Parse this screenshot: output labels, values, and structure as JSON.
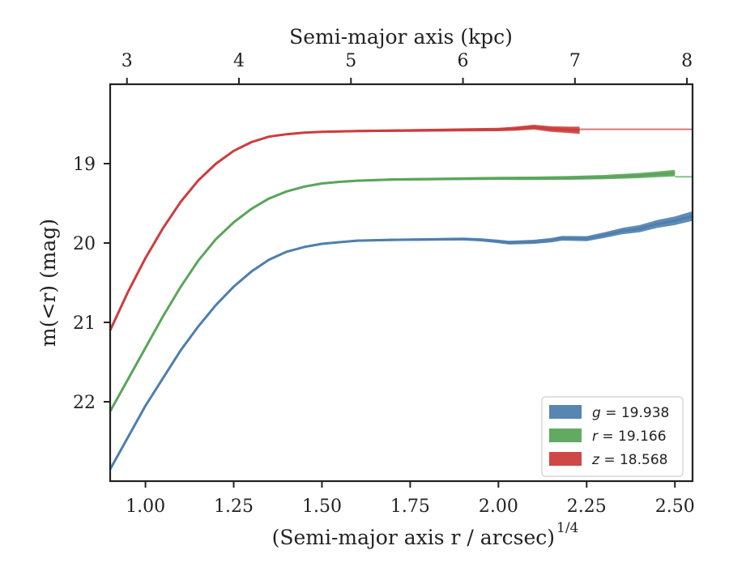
{
  "chart_data": {
    "type": "line",
    "xlabel": "(Semi-major axis r / arcsec)",
    "xlabel_sup": "1/4",
    "ylabel": "m(<r) (mag)",
    "top_xlabel": "Semi-major axis (kpc)",
    "xlim": [
      0.9,
      2.55
    ],
    "ylim": [
      23.0,
      18.0
    ],
    "y_inverted": true,
    "top_xlim": [
      2.85,
      8.05
    ],
    "x_ticks": [
      "1.00",
      "1.25",
      "1.50",
      "1.75",
      "2.00",
      "2.25",
      "2.50"
    ],
    "y_ticks": [
      "19",
      "20",
      "21",
      "22"
    ],
    "top_x_ticks": [
      "3",
      "4",
      "5",
      "6",
      "7",
      "8"
    ],
    "grid": false,
    "legend_position": "bottom-right",
    "series": [
      {
        "name": "g = 19.938",
        "legend": {
          "var": "g",
          "text": " = 19.938"
        },
        "color": "#4e7fad",
        "asymptote": 19.938,
        "x": [
          0.9,
          0.95,
          1.0,
          1.05,
          1.1,
          1.15,
          1.2,
          1.25,
          1.3,
          1.35,
          1.4,
          1.45,
          1.5,
          1.55,
          1.6,
          1.7,
          1.8,
          1.9,
          1.95,
          2.0,
          2.03,
          2.1,
          2.15,
          2.18,
          2.25,
          2.3,
          2.35,
          2.4,
          2.45,
          2.5,
          2.55
        ],
        "y": [
          22.85,
          22.45,
          22.05,
          21.7,
          21.35,
          21.05,
          20.78,
          20.55,
          20.36,
          20.21,
          20.11,
          20.05,
          20.01,
          19.99,
          19.97,
          19.96,
          19.955,
          19.95,
          19.96,
          19.98,
          19.995,
          19.985,
          19.965,
          19.94,
          19.945,
          19.9,
          19.85,
          19.82,
          19.76,
          19.72,
          19.66
        ],
        "band_half_width": [
          0.01,
          0.01,
          0.01,
          0.01,
          0.01,
          0.01,
          0.01,
          0.01,
          0.01,
          0.01,
          0.01,
          0.01,
          0.01,
          0.012,
          0.014,
          0.015,
          0.016,
          0.018,
          0.02,
          0.022,
          0.024,
          0.026,
          0.028,
          0.03,
          0.032,
          0.036,
          0.04,
          0.045,
          0.05,
          0.055,
          0.06
        ]
      },
      {
        "name": "r = 19.166",
        "legend": {
          "var": "r",
          "text": " = 19.166"
        },
        "color": "#5aa55a",
        "asymptote": 19.166,
        "x": [
          0.9,
          0.95,
          1.0,
          1.05,
          1.1,
          1.15,
          1.2,
          1.25,
          1.3,
          1.35,
          1.4,
          1.45,
          1.5,
          1.55,
          1.6,
          1.7,
          1.8,
          1.9,
          2.0,
          2.1,
          2.2,
          2.3,
          2.35,
          2.4,
          2.45,
          2.5
        ],
        "y": [
          22.12,
          21.72,
          21.32,
          20.92,
          20.55,
          20.22,
          19.95,
          19.74,
          19.57,
          19.44,
          19.35,
          19.29,
          19.25,
          19.23,
          19.215,
          19.2,
          19.195,
          19.19,
          19.185,
          19.185,
          19.18,
          19.17,
          19.16,
          19.15,
          19.135,
          19.12
        ],
        "band_half_width": [
          0.01,
          0.01,
          0.01,
          0.01,
          0.01,
          0.01,
          0.01,
          0.01,
          0.01,
          0.01,
          0.01,
          0.01,
          0.01,
          0.012,
          0.014,
          0.015,
          0.016,
          0.018,
          0.02,
          0.022,
          0.024,
          0.027,
          0.03,
          0.033,
          0.036,
          0.04
        ]
      },
      {
        "name": "z = 18.568",
        "legend": {
          "var": "z",
          "text": " = 18.568"
        },
        "color": "#cc3d3d",
        "asymptote": 18.568,
        "x": [
          0.9,
          0.95,
          1.0,
          1.05,
          1.1,
          1.15,
          1.2,
          1.25,
          1.3,
          1.35,
          1.4,
          1.45,
          1.5,
          1.6,
          1.7,
          1.8,
          1.9,
          2.0,
          2.05,
          2.1,
          2.15,
          2.2,
          2.23
        ],
        "y": [
          21.1,
          20.62,
          20.19,
          19.81,
          19.48,
          19.21,
          19.0,
          18.84,
          18.73,
          18.66,
          18.63,
          18.61,
          18.6,
          18.59,
          18.585,
          18.58,
          18.575,
          18.57,
          18.56,
          18.54,
          18.565,
          18.575,
          18.58
        ],
        "band_half_width": [
          0.01,
          0.01,
          0.01,
          0.01,
          0.01,
          0.01,
          0.01,
          0.01,
          0.01,
          0.01,
          0.01,
          0.01,
          0.012,
          0.014,
          0.016,
          0.018,
          0.02,
          0.022,
          0.026,
          0.03,
          0.035,
          0.04,
          0.045
        ]
      }
    ]
  }
}
